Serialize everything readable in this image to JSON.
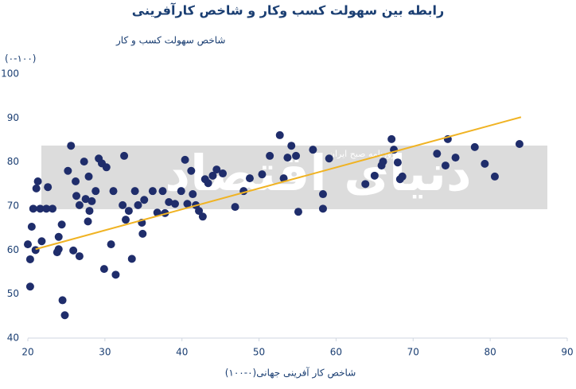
{
  "chart_data": {
    "type": "scatter",
    "title": "رابطه بین سهولت کسب وکار و شاخص کارآفرینی",
    "ylabel": "شاخص سهولت کسب و کار",
    "ylabel_range": "(۰-۱۰۰)",
    "xlabel": "شاخص کار آفرینی جهانی(۰-۱۰۰)",
    "watermark": {
      "text": "دنیای اقتصاد",
      "subtitle": "روزنامه صبح ایران"
    },
    "xlim": [
      20,
      90
    ],
    "xticks": [
      20,
      30,
      40,
      50,
      60,
      70,
      80,
      90
    ],
    "ylim": [
      40,
      100
    ],
    "yticks": [
      40,
      50,
      60,
      70,
      80,
      90,
      100
    ],
    "color": "#1f2d6b",
    "x": [
      20,
      20.3,
      20.3,
      20.5,
      20.7,
      21,
      21.1,
      21.3,
      21.6,
      21.8,
      22.4,
      22.6,
      23.2,
      23.8,
      24,
      24,
      24.5,
      24.8,
      24.4,
      25.2,
      25.6,
      25.9,
      26.2,
      26.3,
      26.7,
      26.7,
      27.3,
      27.5,
      27.8,
      27.9,
      28,
      28.3,
      28.8,
      29.2,
      29.6,
      29.9,
      30.2,
      30.8,
      31.1,
      31.4,
      32.3,
      32.5,
      32.7,
      33.1,
      33.5,
      33.9,
      34.3,
      34.8,
      34.9,
      35.1,
      36.2,
      36.8,
      37.5,
      37.8,
      38.3,
      39.1,
      39.9,
      40.4,
      40.7,
      41.2,
      41.4,
      41.8,
      42.2,
      42.7,
      43,
      43.4,
      44,
      44.5,
      45.3,
      46.9,
      48,
      48.8,
      50.4,
      51.4,
      52.7,
      53.2,
      53.7,
      54.2,
      54.8,
      55.1,
      57,
      58.3,
      58.3,
      59.1,
      63.8,
      65,
      65.9,
      66.1,
      67.2,
      67.5,
      68,
      68.3,
      68.6,
      73.1,
      74.2,
      74.5,
      75.5,
      78,
      79.3,
      80.6,
      83.8
    ],
    "values": [
      61.3,
      57.9,
      51.7,
      65.3,
      69.4,
      60,
      74,
      75.6,
      69.4,
      62,
      69.4,
      74.3,
      69.4,
      59.5,
      63,
      60.2,
      48.6,
      45.2,
      65.8,
      78,
      83.7,
      59.9,
      75.6,
      72.3,
      70.2,
      58.6,
      80.1,
      71.6,
      66.5,
      76.7,
      68.9,
      71.1,
      73.4,
      80.8,
      79.7,
      55.7,
      78.8,
      61.3,
      73.4,
      54.4,
      70.2,
      81.4,
      66.9,
      68.9,
      58,
      73.4,
      70.2,
      66.2,
      63.7,
      71.4,
      73.4,
      68.5,
      73.4,
      68.4,
      70.9,
      70.5,
      73.4,
      80.5,
      70.5,
      78,
      72.7,
      70.2,
      68.9,
      67.6,
      76.1,
      75.2,
      76.9,
      78.3,
      77.4,
      69.8,
      73.4,
      76.3,
      77.2,
      81.4,
      86.1,
      76.3,
      81,
      83.7,
      81.4,
      68.7,
      82.8,
      72.7,
      69.4,
      80.8,
      75,
      76.9,
      79.2,
      80.1,
      85.2,
      82.8,
      79.9,
      76.1,
      76.7,
      81.9,
      79.2,
      85.2,
      81,
      83.4,
      79.6,
      76.7,
      84.1
    ],
    "trendline": {
      "x": [
        21,
        84
      ],
      "values": [
        60.2,
        90.2
      ],
      "color": "#f0b323"
    }
  }
}
